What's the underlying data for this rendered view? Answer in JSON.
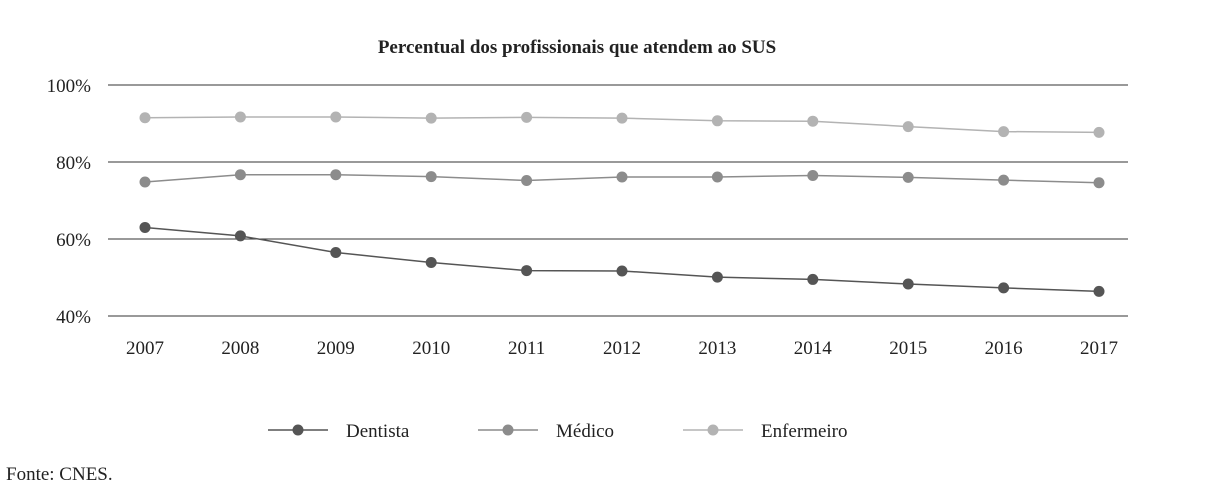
{
  "chart_data": {
    "type": "line",
    "title": "Percentual dos profissionais que atendem ao SUS",
    "xlabel": "",
    "ylabel": "",
    "categories": [
      "2007",
      "2008",
      "2009",
      "2010",
      "2011",
      "2012",
      "2013",
      "2014",
      "2015",
      "2016",
      "2017"
    ],
    "y_ticks": [
      "100%",
      "80%",
      "60%",
      "40%"
    ],
    "y_tick_values": [
      100,
      80,
      60,
      40
    ],
    "ylim": [
      40,
      100
    ],
    "grid": "horizontal",
    "legend_position": "bottom",
    "series": [
      {
        "name": "Dentista",
        "color": "#555555",
        "values": [
          63.0,
          60.8,
          56.5,
          53.9,
          51.8,
          51.7,
          50.1,
          49.5,
          48.3,
          47.3,
          46.4
        ]
      },
      {
        "name": "Médico",
        "color": "#8c8c8c",
        "values": [
          74.8,
          76.7,
          76.7,
          76.2,
          75.2,
          76.1,
          76.1,
          76.5,
          76.0,
          75.3,
          74.6
        ]
      },
      {
        "name": "Enfermeiro",
        "color": "#b3b3b3",
        "values": [
          91.5,
          91.7,
          91.7,
          91.4,
          91.6,
          91.4,
          90.7,
          90.6,
          89.2,
          87.9,
          87.7
        ]
      }
    ]
  },
  "source": "Fonte: CNES."
}
